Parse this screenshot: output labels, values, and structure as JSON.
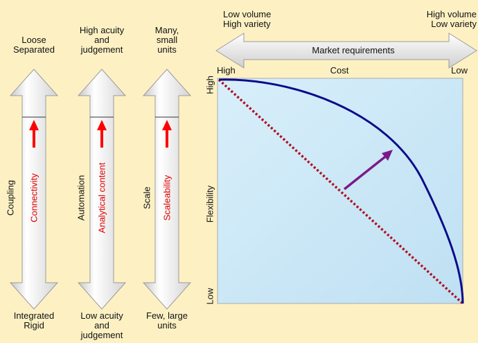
{
  "axes": [
    {
      "top_line1": "Loose",
      "top_line2": "Separated",
      "bottom_line1": "Integrated",
      "bottom_line2": "Rigid",
      "side_label": "Coupling",
      "inner_label": "Connectivity"
    },
    {
      "top_line1": "High acuity",
      "top_line2": "and",
      "top_line3": "judgement",
      "bottom_line1": "Low acuity",
      "bottom_line2": "and",
      "bottom_line3": "judgement",
      "side_label": "Automation",
      "inner_label": "Analytical content"
    },
    {
      "top_line1": "Many,",
      "top_line2": "small",
      "top_line3": "units",
      "bottom_line1": "Few, large",
      "bottom_line2": "units",
      "side_label": "Scale",
      "inner_label": "Scaleability"
    }
  ],
  "market": {
    "left_line1": "Low volume",
    "left_line2": "High variety",
    "right_line1": "High volume",
    "right_line2": "Low variety",
    "arrow_label": "Market requirements"
  },
  "chart": {
    "x_axis_label": "Cost",
    "x_left": "High",
    "x_right": "Low",
    "y_axis_label": "Flexibility",
    "y_top": "High",
    "y_bottom": "Low"
  },
  "colors": {
    "background": "#fdf1c4",
    "plot_fill": "#c9e6f6",
    "curve": "#0b0b8a",
    "diagonal": "#b01020",
    "shift_arrow": "#7a1a8a",
    "inner_arrow": "#ff0000"
  }
}
